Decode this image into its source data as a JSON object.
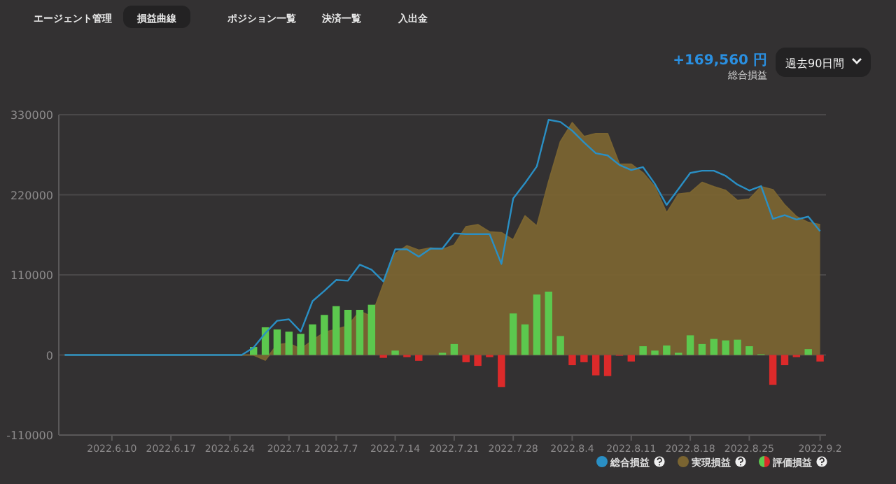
{
  "chart_data": {
    "type": "bar",
    "annotations": [
      "エージェント管理",
      "損益曲線",
      "ポジション一覧",
      "決済一覧",
      "入出金",
      "+169,560 円",
      "総合損益",
      "過去90日間"
    ],
    "categories": [
      null,
      null,
      null,
      null,
      "2022.6.10",
      null,
      null,
      null,
      null,
      "2022.6.17",
      null,
      null,
      null,
      null,
      "2022.6.24",
      null,
      null,
      null,
      null,
      "2022.7.1",
      null,
      null,
      null,
      "2022.7.7",
      null,
      null,
      null,
      null,
      "2022.7.14",
      null,
      null,
      null,
      null,
      "2022.7.21",
      null,
      null,
      null,
      null,
      "2022.7.28",
      null,
      null,
      null,
      null,
      "2022.8.4",
      null,
      null,
      null,
      null,
      "2022.8.11",
      null,
      null,
      null,
      null,
      "2022.8.18",
      null,
      null,
      null,
      null,
      "2022.8.25",
      null,
      null,
      null,
      null,
      null,
      "2022.9.2"
    ],
    "series": [
      {
        "name": "実現損益",
        "type": "area",
        "color": "#7a6431",
        "values": [
          0,
          0,
          0,
          0,
          0,
          0,
          0,
          0,
          0,
          0,
          0,
          0,
          0,
          0,
          0,
          0,
          0,
          -7000,
          14000,
          16000,
          8000,
          20000,
          31000,
          35000,
          40000,
          60000,
          53000,
          97000,
          139000,
          150000,
          144000,
          147000,
          145000,
          151000,
          176000,
          179000,
          169000,
          168000,
          158000,
          191000,
          177000,
          238000,
          293000,
          319000,
          300000,
          304000,
          304000,
          262000,
          262000,
          250000,
          231000,
          195000,
          221000,
          223000,
          237000,
          231000,
          226000,
          212000,
          214000,
          231000,
          227000,
          206000,
          190000,
          182000,
          179000
        ]
      },
      {
        "name": "評価損益",
        "colors": [
          null,
          null,
          null,
          null,
          null,
          null,
          null,
          null,
          null,
          null,
          null,
          null,
          null,
          null,
          null,
          null,
          "#5cc84e",
          "#5cc84e",
          "#5cc84e",
          "#5cc84e",
          "#5cc84e",
          "#5cc84e",
          "#5cc84e",
          "#5cc84e",
          "#5cc84e",
          "#5cc84e",
          "#5cc84e",
          "#dc2a2a",
          "#5cc84e",
          "#dc2a2a",
          "#dc2a2a",
          null,
          "#5cc84e",
          "#5cc84e",
          "#dc2a2a",
          "#dc2a2a",
          "#dc2a2a",
          "#dc2a2a",
          "#5cc84e",
          "#5cc84e",
          "#5cc84e",
          "#5cc84e",
          "#5cc84e",
          "#dc2a2a",
          "#dc2a2a",
          "#dc2a2a",
          "#dc2a2a",
          "#dc2a2a",
          "#dc2a2a",
          "#5cc84e",
          "#5cc84e",
          "#5cc84e",
          "#5cc84e",
          "#5cc84e",
          "#5cc84e",
          "#5cc84e",
          "#5cc84e",
          "#5cc84e",
          "#5cc84e",
          "#5cc84e",
          "#dc2a2a",
          "#dc2a2a",
          "#dc2a2a",
          "#5cc84e",
          "#dc2a2a"
        ],
        "values": [
          null,
          null,
          null,
          null,
          null,
          null,
          null,
          null,
          null,
          null,
          null,
          null,
          null,
          null,
          null,
          null,
          11000,
          38000,
          35000,
          32000,
          29000,
          42000,
          55000,
          67000,
          62000,
          62000,
          69000,
          -4000,
          6000,
          -3000,
          -8000,
          null,
          3000,
          15000,
          -10000,
          -15000,
          -3000,
          -44000,
          57000,
          42000,
          83000,
          87000,
          26000,
          -14000,
          -10000,
          -28000,
          -29000,
          -1000,
          -9000,
          12000,
          6000,
          13000,
          3000,
          27000,
          15000,
          22000,
          20000,
          21000,
          12000,
          1000,
          -41000,
          -14000,
          -3000,
          8000,
          -9000
        ]
      },
      {
        "name": "総合損益",
        "type": "line",
        "color": "#2a8fc4",
        "values": [
          0,
          0,
          0,
          0,
          0,
          0,
          0,
          0,
          0,
          0,
          0,
          0,
          0,
          0,
          0,
          0,
          10000,
          30000,
          47000,
          49000,
          32000,
          74000,
          88000,
          103000,
          102000,
          124000,
          117000,
          101000,
          145000,
          145000,
          135000,
          146000,
          146000,
          167000,
          166000,
          166000,
          166000,
          125000,
          215000,
          236000,
          259000,
          323000,
          320000,
          308000,
          292000,
          277000,
          274000,
          261000,
          254000,
          258000,
          235000,
          206000,
          228000,
          250000,
          253000,
          253000,
          246000,
          234000,
          226000,
          232000,
          187000,
          192000,
          186000,
          190000,
          170000
        ]
      }
    ],
    "ylim": [
      -110000,
      330000
    ],
    "yticks": [
      -110000,
      0,
      110000,
      220000,
      330000
    ],
    "grid": "y",
    "legend": "bottom"
  }
}
